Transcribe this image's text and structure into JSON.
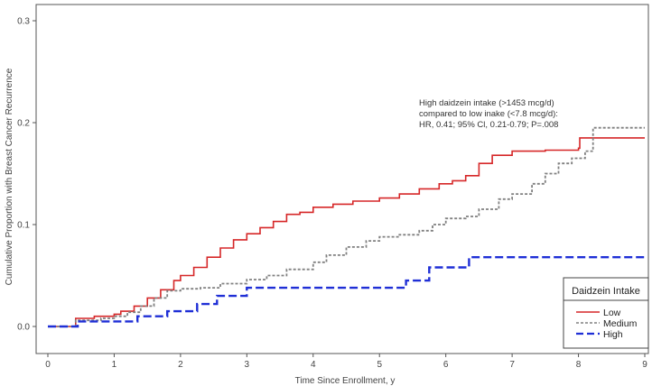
{
  "chart_data": {
    "type": "line",
    "title": "",
    "xlabel": "Time Since Enrollment, y",
    "ylabel": "Cumulative Proportion with Breast Cancer Recurrence",
    "xlim": [
      0,
      9
    ],
    "ylim": [
      0,
      0.3
    ],
    "xticks": [
      "0",
      "1",
      "2",
      "3",
      "4",
      "5",
      "6",
      "7",
      "8",
      "9"
    ],
    "yticks": [
      "0.0",
      "0.1",
      "0.2",
      "0.3"
    ],
    "grid": false,
    "annotation": [
      "High daidzein intake (>1453 mcg/d)",
      "compared to low inake (<7.8 mcg/d):",
      "HR, 0.41; 95% Cl, 0.21-0.79; P=.008"
    ],
    "legend": {
      "title": "Daidzein Intake",
      "placement": "bottom-right"
    },
    "series": [
      {
        "name": "Low",
        "color": "#d62728",
        "style": "solid",
        "points": [
          [
            0,
            0
          ],
          [
            0.35,
            0
          ],
          [
            0.42,
            0.008
          ],
          [
            0.7,
            0.01
          ],
          [
            1.0,
            0.012
          ],
          [
            1.1,
            0.015
          ],
          [
            1.3,
            0.02
          ],
          [
            1.5,
            0.028
          ],
          [
            1.7,
            0.036
          ],
          [
            1.9,
            0.045
          ],
          [
            2.0,
            0.05
          ],
          [
            2.2,
            0.058
          ],
          [
            2.4,
            0.068
          ],
          [
            2.6,
            0.077
          ],
          [
            2.8,
            0.085
          ],
          [
            3.0,
            0.091
          ],
          [
            3.2,
            0.097
          ],
          [
            3.4,
            0.103
          ],
          [
            3.6,
            0.11
          ],
          [
            3.8,
            0.112
          ],
          [
            4.0,
            0.117
          ],
          [
            4.3,
            0.12
          ],
          [
            4.6,
            0.123
          ],
          [
            5.0,
            0.126
          ],
          [
            5.3,
            0.13
          ],
          [
            5.6,
            0.135
          ],
          [
            5.9,
            0.14
          ],
          [
            6.1,
            0.143
          ],
          [
            6.3,
            0.148
          ],
          [
            6.5,
            0.16
          ],
          [
            6.7,
            0.168
          ],
          [
            7.0,
            0.172
          ],
          [
            7.5,
            0.173
          ],
          [
            8.0,
            0.175
          ],
          [
            8.02,
            0.185
          ],
          [
            9.0,
            0.185
          ]
        ]
      },
      {
        "name": "Medium",
        "color": "#808080",
        "style": "dotted",
        "points": [
          [
            0,
            0
          ],
          [
            0.35,
            0
          ],
          [
            0.42,
            0.006
          ],
          [
            0.8,
            0.008
          ],
          [
            1.0,
            0.01
          ],
          [
            1.2,
            0.014
          ],
          [
            1.4,
            0.02
          ],
          [
            1.6,
            0.028
          ],
          [
            1.8,
            0.035
          ],
          [
            2.0,
            0.037
          ],
          [
            2.3,
            0.038
          ],
          [
            2.6,
            0.042
          ],
          [
            3.0,
            0.046
          ],
          [
            3.3,
            0.05
          ],
          [
            3.6,
            0.056
          ],
          [
            4.0,
            0.063
          ],
          [
            4.2,
            0.07
          ],
          [
            4.5,
            0.078
          ],
          [
            4.8,
            0.084
          ],
          [
            5.0,
            0.088
          ],
          [
            5.3,
            0.09
          ],
          [
            5.6,
            0.094
          ],
          [
            5.8,
            0.1
          ],
          [
            6.0,
            0.106
          ],
          [
            6.3,
            0.108
          ],
          [
            6.5,
            0.115
          ],
          [
            6.8,
            0.125
          ],
          [
            7.0,
            0.13
          ],
          [
            7.3,
            0.14
          ],
          [
            7.5,
            0.15
          ],
          [
            7.7,
            0.16
          ],
          [
            7.9,
            0.165
          ],
          [
            8.1,
            0.172
          ],
          [
            8.22,
            0.195
          ],
          [
            9.0,
            0.195
          ]
        ]
      },
      {
        "name": "High",
        "color": "#1f2fd6",
        "style": "dashed",
        "points": [
          [
            0,
            0
          ],
          [
            0.4,
            0
          ],
          [
            0.45,
            0.005
          ],
          [
            1.3,
            0.005
          ],
          [
            1.35,
            0.01
          ],
          [
            1.75,
            0.01
          ],
          [
            1.8,
            0.015
          ],
          [
            2.2,
            0.015
          ],
          [
            2.25,
            0.022
          ],
          [
            2.5,
            0.022
          ],
          [
            2.55,
            0.03
          ],
          [
            2.95,
            0.03
          ],
          [
            3.0,
            0.038
          ],
          [
            5.35,
            0.038
          ],
          [
            5.4,
            0.045
          ],
          [
            5.7,
            0.045
          ],
          [
            5.75,
            0.058
          ],
          [
            6.3,
            0.058
          ],
          [
            6.35,
            0.068
          ],
          [
            9.0,
            0.068
          ]
        ]
      }
    ]
  }
}
